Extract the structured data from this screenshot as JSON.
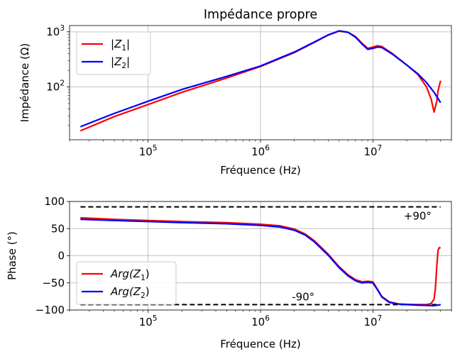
{
  "chart_data": [
    {
      "type": "line",
      "title": "Impédance propre",
      "xlabel": "Fréquence (Hz)",
      "ylabel": "Impédance (Ω)",
      "xscale": "log",
      "yscale": "log",
      "xlim": [
        20000,
        50000000
      ],
      "ylim": [
        11,
        1300
      ],
      "grid": true,
      "legend_position": "top-left",
      "xticks": [
        {
          "value": 100000,
          "base": "10",
          "exp": "5"
        },
        {
          "value": 1000000,
          "base": "10",
          "exp": "6"
        },
        {
          "value": 10000000,
          "base": "10",
          "exp": "7"
        }
      ],
      "yticks": [
        {
          "value": 100,
          "base": "10",
          "exp": "2"
        },
        {
          "value": 1000,
          "base": "10",
          "exp": "3"
        }
      ],
      "series": [
        {
          "name": "|Z1|",
          "legend": {
            "pre": "|",
            "var": "Z",
            "sub": "1",
            "post": "|"
          },
          "color": "#ff0000",
          "x": [
            25000,
            50000,
            100000,
            200000,
            500000,
            1000000,
            2000000,
            3000000,
            4000000,
            5000000,
            6000000,
            7000000,
            8000000,
            9000000,
            10000000,
            11000000,
            12000000,
            15000000,
            20000000,
            25000000,
            30000000,
            33000000,
            35000000,
            37000000,
            38000000,
            40000000
          ],
          "y": [
            16,
            29,
            48,
            80,
            145,
            235,
            420,
            640,
            870,
            1030,
            980,
            820,
            620,
            500,
            530,
            560,
            540,
            400,
            250,
            170,
            100,
            60,
            35,
            55,
            85,
            130
          ]
        },
        {
          "name": "|Z2|",
          "legend": {
            "pre": "|",
            "var": "Z",
            "sub": "2",
            "post": "|"
          },
          "color": "#0000ff",
          "x": [
            25000,
            50000,
            100000,
            200000,
            500000,
            1000000,
            2000000,
            3000000,
            4000000,
            5000000,
            6000000,
            7000000,
            8000000,
            9000000,
            10000000,
            11000000,
            12000000,
            15000000,
            20000000,
            25000000,
            30000000,
            35000000,
            40000000
          ],
          "y": [
            19,
            33,
            55,
            90,
            155,
            240,
            430,
            650,
            880,
            1040,
            980,
            800,
            600,
            480,
            500,
            530,
            520,
            390,
            250,
            175,
            120,
            80,
            52
          ]
        }
      ]
    },
    {
      "type": "line",
      "xlabel": "Fréquence (Hz)",
      "ylabel": "Phase (°)",
      "xscale": "log",
      "xlim": [
        20000,
        50000000
      ],
      "ylim": [
        -100,
        100
      ],
      "grid": true,
      "legend_position": "bottom-left",
      "xticks": [
        {
          "value": 100000,
          "base": "10",
          "exp": "5"
        },
        {
          "value": 1000000,
          "base": "10",
          "exp": "6"
        },
        {
          "value": 10000000,
          "base": "10",
          "exp": "7"
        }
      ],
      "yticks": [
        {
          "value": 100,
          "label": "100"
        },
        {
          "value": 50,
          "label": "50"
        },
        {
          "value": 0,
          "label": "0"
        },
        {
          "value": -50,
          "label": "−50"
        },
        {
          "value": -100,
          "label": "−100"
        }
      ],
      "reference_lines": [
        {
          "y": 90,
          "x": [
            25000,
            40000000
          ],
          "style": "dashed",
          "color": "#000000"
        },
        {
          "y": -90,
          "x": [
            25000,
            40000000
          ],
          "style": "dashed",
          "color": "#000000"
        }
      ],
      "annotations": [
        {
          "text": "+90°",
          "x": 25000000,
          "y": 73
        },
        {
          "text": "-90°",
          "x": 2400000,
          "y": -76
        }
      ],
      "series": [
        {
          "name": "Arg(Z1)",
          "legend": {
            "pre": "",
            "var": "Arg(Z",
            "sub": "1",
            "post": ")"
          },
          "color": "#ff0000",
          "x": [
            25000,
            50000,
            100000,
            200000,
            500000,
            1000000,
            1500000,
            2000000,
            2500000,
            3000000,
            4000000,
            5000000,
            6000000,
            7000000,
            8000000,
            9000000,
            10000000,
            11000000,
            12000000,
            14000000,
            17000000,
            20000000,
            25000000,
            30000000,
            33000000,
            35000000,
            36000000,
            37000000,
            38000000,
            39000000,
            40000000
          ],
          "y": [
            70,
            67,
            65,
            63,
            61,
            58,
            55,
            49,
            40,
            28,
            3,
            -20,
            -35,
            -44,
            -48,
            -47,
            -48,
            -62,
            -75,
            -85,
            -89,
            -89.5,
            -90,
            -90,
            -88,
            -80,
            -60,
            -20,
            10,
            15,
            14
          ]
        },
        {
          "name": "Arg(Z2)",
          "legend": {
            "pre": "",
            "var": "Arg(Z",
            "sub": "2",
            "post": ")"
          },
          "color": "#0000ff",
          "x": [
            25000,
            50000,
            100000,
            200000,
            500000,
            1000000,
            1500000,
            2000000,
            2500000,
            3000000,
            4000000,
            5000000,
            6000000,
            7000000,
            8000000,
            9000000,
            10000000,
            11000000,
            12000000,
            14000000,
            17000000,
            20000000,
            25000000,
            30000000,
            35000000,
            40000000
          ],
          "y": [
            67,
            65,
            63,
            61,
            59,
            56,
            53,
            47,
            38,
            26,
            1,
            -22,
            -37,
            -46,
            -50,
            -49,
            -50,
            -63,
            -76,
            -86,
            -89,
            -90,
            -91,
            -91.5,
            -92,
            -90
          ]
        }
      ]
    }
  ]
}
